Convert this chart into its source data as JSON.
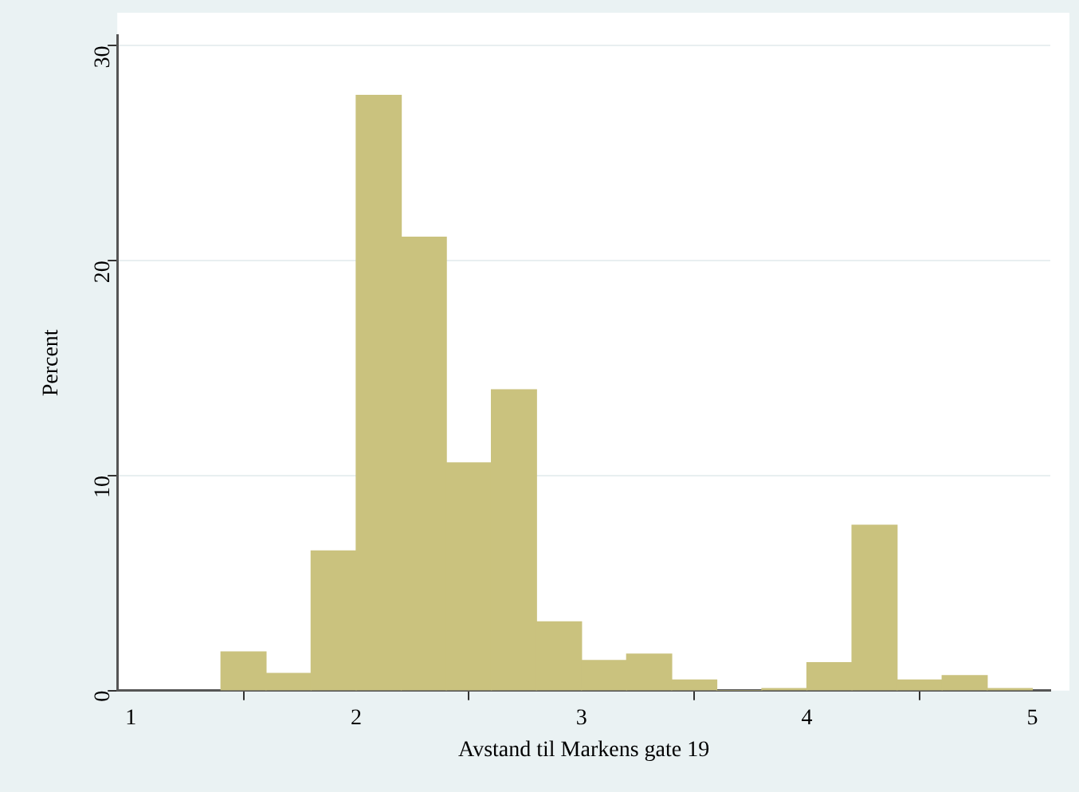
{
  "chart_data": {
    "type": "histogram",
    "xlabel": "Avstand til Markens gate 19",
    "ylabel": "Percent",
    "bins": [
      1.4,
      1.6,
      1.8,
      2.0,
      2.2,
      2.4,
      2.6,
      2.8,
      3.0,
      3.2,
      3.4,
      3.6,
      3.8,
      4.0,
      4.2,
      4.4,
      4.6,
      4.8,
      5.0
    ],
    "values": [
      1.8,
      0.8,
      6.5,
      27.7,
      21.1,
      10.6,
      14.0,
      3.2,
      1.4,
      1.7,
      0.5,
      0,
      0.1,
      1.3,
      7.7,
      0.5,
      0.7,
      0.1
    ],
    "color": "#cac27e",
    "xlim": [
      0.94,
      5.08
    ],
    "xticks": [
      1,
      2,
      3,
      4,
      5
    ],
    "ylim": [
      0,
      30.5
    ],
    "yticks": [
      0,
      10,
      20,
      30
    ],
    "grid": "y",
    "legend": false
  }
}
